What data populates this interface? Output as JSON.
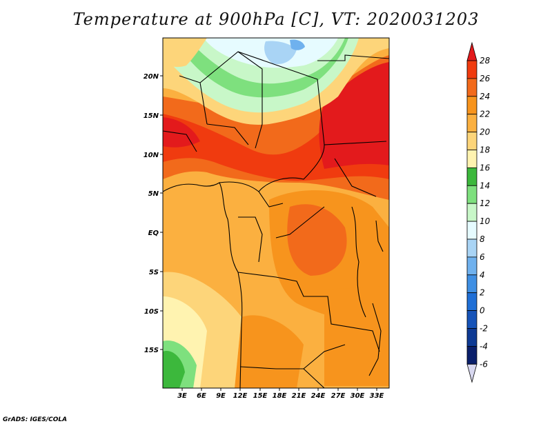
{
  "title": "Temperature at 900hPa [C], VT: 2020031203",
  "credit": "GrADS: IGES/COLA",
  "lat_labels": [
    "20N",
    "15N",
    "10N",
    "5N",
    "EQ",
    "5S",
    "10S",
    "15S"
  ],
  "lon_labels": [
    "3E",
    "6E",
    "9E",
    "12E",
    "15E",
    "18E",
    "21E",
    "24E",
    "27E",
    "30E",
    "33E"
  ],
  "colorbar": {
    "levels": [
      "28",
      "26",
      "24",
      "22",
      "20",
      "18",
      "16",
      "14",
      "12",
      "10",
      "8",
      "6",
      "4",
      "2",
      "0",
      "-2",
      "-4",
      "-6"
    ],
    "colors": [
      "#e31a1c",
      "#f03b0f",
      "#f26a1b",
      "#f7941d",
      "#fbb040",
      "#fdd57a",
      "#fff3b0",
      "#3cb83c",
      "#7ee07e",
      "#c8f7c8",
      "#e6fbff",
      "#a9d4f5",
      "#6fb1ee",
      "#3f8fe3",
      "#1f6fd6",
      "#1653b8",
      "#0e3a94",
      "#0a1f6b",
      "#d8d8f0"
    ]
  }
}
